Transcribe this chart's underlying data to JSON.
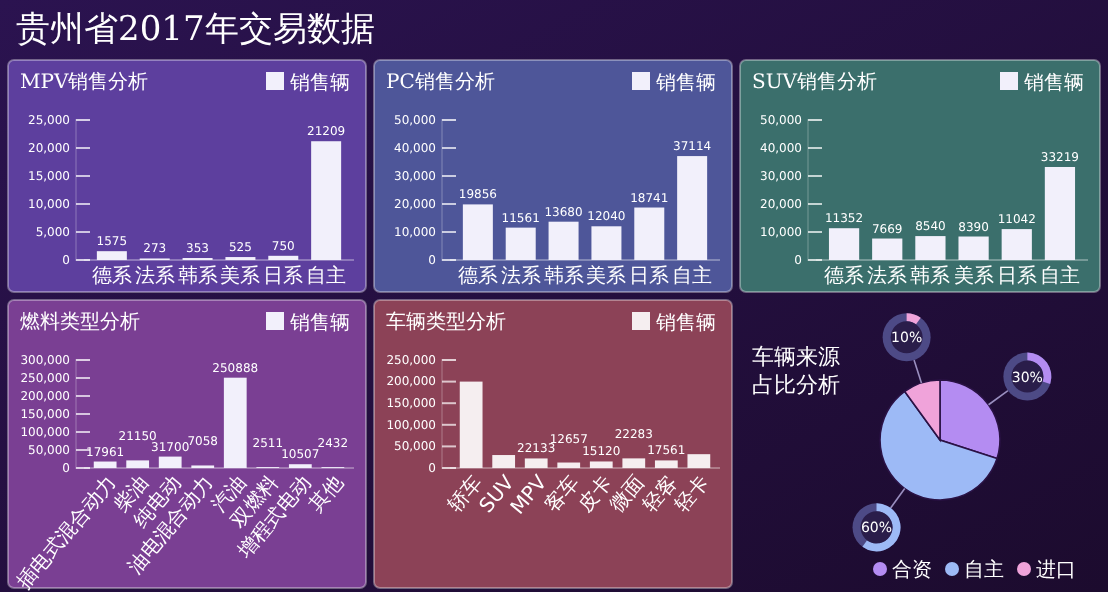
{
  "chart_data": [
    {
      "type": "other",
      "title": "贵州省2017年交易数据"
    },
    {
      "type": "bar",
      "title": "MPV销售分析",
      "categories": [
        "德系",
        "法系",
        "韩系",
        "美系",
        "日系",
        "自主"
      ],
      "series": [
        {
          "name": "销售辆",
          "color": "#f2f0fb",
          "values": [
            1575,
            273,
            353,
            525,
            750,
            21209
          ]
        }
      ],
      "ylim": [
        0,
        25000
      ],
      "yticks": [
        {
          "value": 0,
          "label": "0"
        },
        {
          "value": 5000,
          "label": "5,000"
        },
        {
          "value": 10000,
          "label": "10,000"
        },
        {
          "value": 15000,
          "label": "15,000"
        },
        {
          "value": 20000,
          "label": "20,000"
        },
        {
          "value": 25000,
          "label": "25,000"
        }
      ],
      "data_labels": true
    },
    {
      "type": "bar",
      "title": "PC销售分析",
      "categories": [
        "德系",
        "法系",
        "韩系",
        "美系",
        "日系",
        "自主"
      ],
      "series": [
        {
          "name": "销售辆",
          "color": "#f2f0fb",
          "values": [
            19856,
            11561,
            13680,
            12040,
            18741,
            37114
          ]
        }
      ],
      "ylim": [
        0,
        50000
      ],
      "yticks": [
        {
          "value": 0,
          "label": "0"
        },
        {
          "value": 10000,
          "label": "10,000"
        },
        {
          "value": 20000,
          "label": "20,000"
        },
        {
          "value": 30000,
          "label": "30,000"
        },
        {
          "value": 40000,
          "label": "40,000"
        },
        {
          "value": 50000,
          "label": "50,000"
        }
      ],
      "data_labels": true
    },
    {
      "type": "bar",
      "title": "SUV销售分析",
      "categories": [
        "德系",
        "法系",
        "韩系",
        "美系",
        "日系",
        "自主"
      ],
      "series": [
        {
          "name": "销售辆",
          "color": "#f2f0fb",
          "values": [
            11352,
            7669,
            8540,
            8390,
            11042,
            33219
          ]
        }
      ],
      "ylim": [
        0,
        50000
      ],
      "yticks": [
        {
          "value": 0,
          "label": "0"
        },
        {
          "value": 10000,
          "label": "10,000"
        },
        {
          "value": 20000,
          "label": "20,000"
        },
        {
          "value": 30000,
          "label": "30,000"
        },
        {
          "value": 40000,
          "label": "40,000"
        },
        {
          "value": 50000,
          "label": "50,000"
        }
      ],
      "data_labels": true
    },
    {
      "type": "bar",
      "title": "燃料类型分析",
      "categories": [
        "插电式混合动力",
        "柴油",
        "纯电动",
        "油电混合动力",
        "汽油",
        "双燃料",
        "增程式电动",
        "其他"
      ],
      "series": [
        {
          "name": "销售辆",
          "color": "#f2f0fb",
          "values": [
            17961,
            21150,
            31700,
            7058,
            250888,
            2511,
            10507,
            2432
          ]
        }
      ],
      "ylim": [
        0,
        300000
      ],
      "yticks": [
        {
          "value": 0,
          "label": "0"
        },
        {
          "value": 50000,
          "label": "50,000"
        },
        {
          "value": 100000,
          "label": "100,000"
        },
        {
          "value": 150000,
          "label": "150,000"
        },
        {
          "value": 200000,
          "label": "200,000"
        },
        {
          "value": 250000,
          "label": "250,000"
        },
        {
          "value": 300000,
          "label": "300,000"
        }
      ],
      "data_labels": true
    },
    {
      "type": "bar",
      "title": "车辆类型分析",
      "categories": [
        "轿车",
        "SUV",
        "MPV",
        "客车",
        "皮卡",
        "微面",
        "轻客",
        "轻卡"
      ],
      "series": [
        {
          "name": "销售辆",
          "color": "#f5eef0",
          "values": [
            200000,
            30000,
            22133,
            12657,
            15120,
            22283,
            17561,
            32000
          ],
          "value_labels": [
            null,
            null,
            "22133",
            "12657",
            "15120",
            "22283",
            "17561",
            null
          ]
        }
      ],
      "ylim": [
        0,
        250000
      ],
      "yticks": [
        {
          "value": 0,
          "label": "0"
        },
        {
          "value": 50000,
          "label": "50,000"
        },
        {
          "value": 100000,
          "label": "100,000"
        },
        {
          "value": 150000,
          "label": "150,000"
        },
        {
          "value": 200000,
          "label": "200,000"
        },
        {
          "value": 250000,
          "label": "250,000"
        }
      ]
    },
    {
      "type": "pie",
      "title": "车辆来源占比分析",
      "categories": [
        "合资",
        "自主",
        "进口"
      ],
      "values": [
        30,
        60,
        10
      ],
      "colors": [
        "#b48cf2",
        "#9dbaf6",
        "#f0a3da"
      ],
      "value_labels": [
        "30%",
        "60%",
        "10%"
      ],
      "legend": "bottom"
    }
  ]
}
